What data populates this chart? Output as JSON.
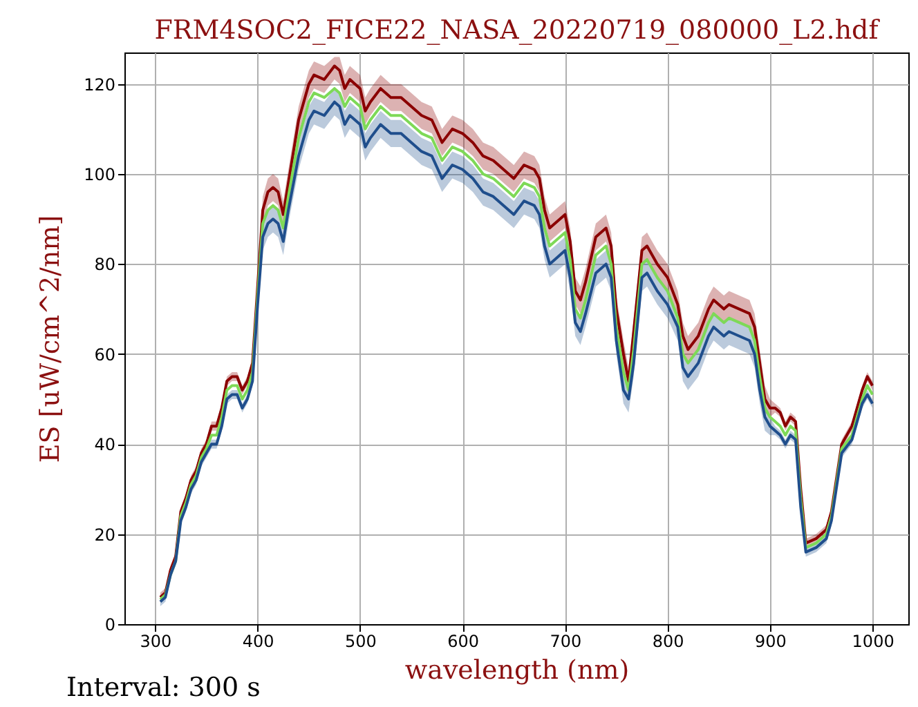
{
  "chart_data": {
    "type": "line",
    "title": "FRM4SOC2_FICE22_NASA_20220719_080000_L2.hdf",
    "xlabel": "wavelength (nm)",
    "ylabel": "ES [uW/cm^2/nm]",
    "annotations": [
      "Interval: 300 s"
    ],
    "x": [
      305,
      310,
      315,
      320,
      325,
      330,
      335,
      340,
      345,
      350,
      355,
      360,
      365,
      370,
      375,
      380,
      385,
      390,
      395,
      400,
      405,
      410,
      415,
      420,
      425,
      430,
      440,
      450,
      455,
      465,
      475,
      480,
      485,
      490,
      495,
      500,
      505,
      510,
      520,
      530,
      540,
      550,
      560,
      570,
      580,
      590,
      600,
      610,
      620,
      630,
      640,
      650,
      660,
      670,
      675,
      680,
      685,
      690,
      700,
      705,
      710,
      715,
      720,
      730,
      740,
      745,
      750,
      757,
      762,
      767,
      775,
      780,
      790,
      800,
      810,
      815,
      820,
      830,
      840,
      845,
      855,
      860,
      870,
      880,
      885,
      890,
      895,
      900,
      905,
      910,
      915,
      920,
      925,
      930,
      935,
      945,
      955,
      960,
      970,
      980,
      985,
      990,
      995,
      1000
    ],
    "series": [
      {
        "color": "#8b0000",
        "values": [
          6,
          7,
          12,
          15,
          25,
          28,
          32,
          34,
          38,
          40,
          44,
          44,
          48,
          54,
          55,
          55,
          52,
          54,
          58,
          75,
          92,
          96,
          97,
          96,
          91,
          98,
          112,
          120,
          122,
          121,
          124,
          123,
          119,
          121,
          120,
          119,
          114,
          116,
          119,
          117,
          117,
          115,
          113,
          112,
          107,
          110,
          109,
          107,
          104,
          103,
          101,
          99,
          102,
          101,
          99,
          92,
          88,
          89,
          91,
          85,
          74,
          72,
          76,
          86,
          88,
          84,
          70,
          60,
          54,
          65,
          83,
          84,
          80,
          77,
          71,
          64,
          61,
          64,
          70,
          72,
          70,
          71,
          70,
          69,
          66,
          58,
          50,
          48,
          48,
          47,
          44,
          46,
          45,
          30,
          18,
          19,
          21,
          25,
          40,
          44,
          48,
          52,
          55,
          53
        ],
        "lower": [
          5,
          6,
          11,
          14,
          24,
          27,
          31,
          33,
          37,
          39,
          43,
          43,
          47,
          53,
          54,
          54,
          51,
          53,
          57,
          74,
          89,
          93,
          94,
          93,
          88,
          95,
          109,
          117,
          119,
          118,
          121,
          120,
          116,
          118,
          117,
          116,
          111,
          113,
          116,
          114,
          114,
          112,
          110,
          109,
          104,
          107,
          106,
          104,
          101,
          100,
          98,
          96,
          99,
          98,
          96,
          89,
          85,
          86,
          88,
          82,
          71,
          69,
          73,
          83,
          85,
          81,
          67,
          57,
          51,
          62,
          80,
          81,
          77,
          74,
          68,
          61,
          58,
          61,
          67,
          69,
          67,
          68,
          67,
          66,
          63,
          55,
          47,
          46,
          47,
          46,
          43,
          45,
          44,
          29,
          17,
          18,
          20,
          24,
          39,
          43,
          47,
          51,
          54,
          52
        ],
        "upper": [
          7,
          8,
          13,
          16,
          26,
          29,
          33,
          35,
          39,
          41,
          45,
          45,
          49,
          55,
          56,
          56,
          53,
          55,
          59,
          76,
          95,
          99,
          100,
          99,
          94,
          101,
          115,
          123,
          125,
          124,
          126,
          126,
          122,
          124,
          123,
          122,
          117,
          119,
          122,
          120,
          120,
          118,
          116,
          115,
          110,
          113,
          112,
          110,
          107,
          106,
          104,
          102,
          105,
          104,
          102,
          95,
          91,
          92,
          94,
          88,
          77,
          75,
          79,
          89,
          91,
          87,
          73,
          63,
          57,
          68,
          86,
          87,
          83,
          80,
          74,
          67,
          64,
          67,
          73,
          75,
          73,
          74,
          73,
          72,
          69,
          61,
          53,
          50,
          49,
          48,
          45,
          47,
          46,
          31,
          19,
          20,
          22,
          26,
          41,
          45,
          49,
          53,
          56,
          54
        ]
      },
      {
        "color": "#7ed957",
        "values": [
          5.5,
          6.5,
          11,
          14,
          24,
          27,
          31,
          33,
          37,
          39,
          42,
          42,
          46,
          52,
          53,
          53,
          50,
          52,
          56,
          73,
          89,
          92,
          93,
          92,
          88,
          95,
          108,
          116,
          118,
          117,
          119,
          118,
          115,
          117,
          116,
          115,
          110,
          112,
          115,
          113,
          113,
          111,
          109,
          108,
          103,
          106,
          105,
          103,
          100,
          99,
          97,
          95,
          98,
          97,
          95,
          88,
          84,
          85,
          87,
          81,
          70,
          68,
          72,
          82,
          84,
          80,
          66,
          56,
          52,
          61,
          80,
          81,
          77,
          74,
          68,
          60,
          58,
          61,
          67,
          69,
          67,
          68,
          67,
          66,
          63,
          55,
          48,
          46,
          45,
          44,
          42,
          44,
          43,
          28,
          17,
          18,
          20,
          24,
          39,
          42,
          46,
          50,
          53,
          51
        ]
      },
      {
        "color": "#1f4e8c",
        "values": [
          5,
          6,
          11,
          14,
          23,
          26,
          30,
          32,
          36,
          38,
          40,
          40,
          44,
          50,
          51,
          51,
          48,
          50,
          54,
          71,
          86,
          89,
          90,
          89,
          85,
          92,
          104,
          112,
          114,
          113,
          116,
          115,
          111,
          113,
          112,
          111,
          106,
          108,
          111,
          109,
          109,
          107,
          105,
          104,
          99,
          102,
          101,
          99,
          96,
          95,
          93,
          91,
          94,
          93,
          91,
          84,
          80,
          81,
          83,
          77,
          67,
          65,
          69,
          78,
          80,
          77,
          63,
          52,
          50,
          58,
          77,
          78,
          74,
          71,
          66,
          57,
          55,
          58,
          64,
          66,
          64,
          65,
          64,
          63,
          60,
          52,
          46,
          44,
          43,
          42,
          40,
          42,
          41,
          26,
          16,
          17,
          19,
          23,
          38,
          41,
          45,
          49,
          51,
          49
        ],
        "upper": [
          6,
          7,
          12,
          15,
          24,
          27,
          31,
          33,
          37,
          39,
          41,
          41,
          45,
          51,
          52,
          52,
          49,
          51,
          55,
          72,
          89,
          92,
          93,
          92,
          88,
          95,
          107,
          115,
          117,
          116,
          119,
          118,
          114,
          116,
          115,
          114,
          109,
          111,
          114,
          112,
          112,
          110,
          108,
          107,
          102,
          105,
          104,
          102,
          99,
          98,
          96,
          94,
          97,
          96,
          94,
          87,
          83,
          84,
          86,
          80,
          70,
          68,
          72,
          81,
          83,
          80,
          66,
          55,
          53,
          61,
          80,
          81,
          77,
          74,
          69,
          60,
          58,
          61,
          67,
          69,
          67,
          68,
          67,
          66,
          63,
          55,
          49,
          46,
          44,
          43,
          41,
          43,
          42,
          27,
          17,
          18,
          20,
          24,
          39,
          42,
          46,
          50,
          52,
          50
        ],
        "lower": [
          4,
          5,
          10,
          13,
          22,
          25,
          29,
          31,
          35,
          37,
          39,
          39,
          43,
          49,
          50,
          50,
          47,
          49,
          53,
          70,
          83,
          86,
          87,
          86,
          82,
          89,
          101,
          109,
          111,
          110,
          113,
          112,
          108,
          110,
          109,
          108,
          103,
          105,
          108,
          106,
          106,
          104,
          102,
          101,
          96,
          99,
          98,
          96,
          93,
          92,
          90,
          88,
          91,
          90,
          88,
          81,
          77,
          78,
          80,
          74,
          64,
          62,
          66,
          75,
          77,
          74,
          60,
          49,
          47,
          55,
          74,
          75,
          71,
          68,
          63,
          54,
          52,
          55,
          61,
          63,
          61,
          62,
          61,
          60,
          57,
          49,
          43,
          42,
          42,
          41,
          39,
          41,
          40,
          25,
          15,
          16,
          18,
          22,
          37,
          40,
          44,
          48,
          50,
          48
        ]
      }
    ],
    "xlim": [
      270,
      1035
    ],
    "ylim": [
      0,
      127
    ],
    "xticks": [
      300,
      400,
      500,
      600,
      700,
      800,
      900,
      1000
    ],
    "yticks": [
      0,
      20,
      40,
      60,
      80,
      100,
      120
    ],
    "grid": true
  }
}
